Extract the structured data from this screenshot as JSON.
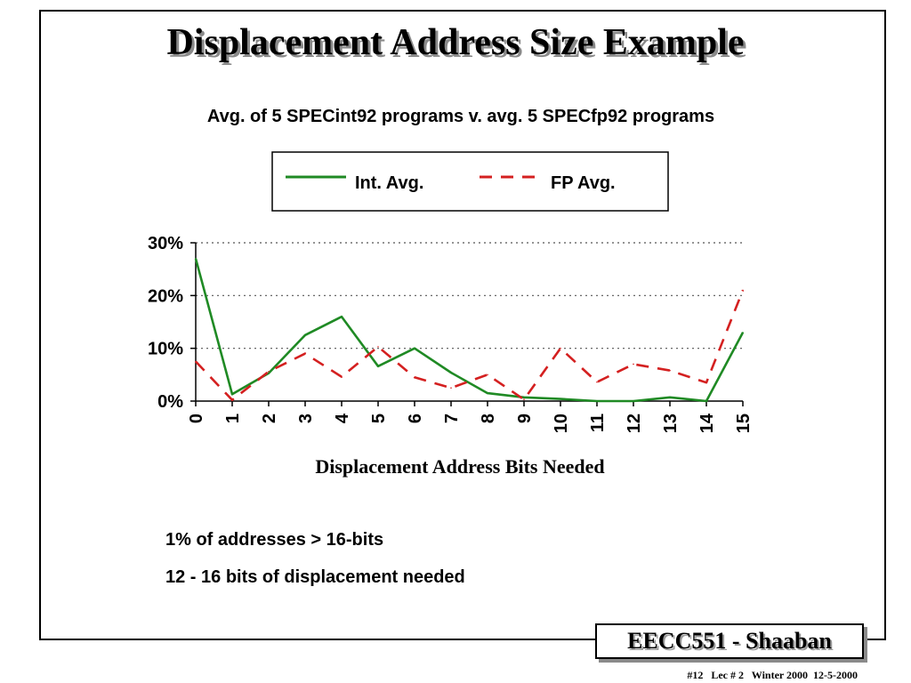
{
  "slide": {
    "title": "Displacement Address Size Example",
    "subtitle": "Avg. of 5 SPECint92 programs v. avg. 5 SPECfp92 programs",
    "notes": [
      "1% of addresses > 16-bits",
      "12 - 16 bits of displacement needed"
    ],
    "footer_badge": "EECC551 - Shaaban",
    "footer_meta": "#12   Lec # 2   Winter 2000  12-5-2000"
  },
  "colors": {
    "int_series": "#1f8a24",
    "fp_series": "#d42020",
    "gridline": "#555555"
  },
  "chart_data": {
    "type": "line",
    "title": "Avg. of 5 SPECint92 programs v. avg. 5 SPECfp92 programs",
    "xlabel": "Displacement Address Bits Needed",
    "ylabel": "",
    "x": [
      0,
      1,
      2,
      3,
      4,
      5,
      6,
      7,
      8,
      9,
      10,
      11,
      12,
      13,
      14,
      15
    ],
    "x_tick_labels": [
      "0",
      "1",
      "2",
      "3",
      "4",
      "5",
      "6",
      "7",
      "8",
      "9",
      "10",
      "11",
      "12",
      "13",
      "14",
      "15"
    ],
    "y_tick_labels": [
      "0%",
      "10%",
      "20%",
      "30%"
    ],
    "ylim": [
      0,
      30
    ],
    "grid": "horizontal dotted",
    "legend_position": "top-center, boxed",
    "series": [
      {
        "name": "Int. Avg.",
        "style": "solid",
        "values": [
          27,
          1.3,
          5.3,
          12.5,
          16,
          6.6,
          10,
          5.4,
          1.5,
          0.7,
          0.4,
          0,
          0,
          0.7,
          0,
          13
        ]
      },
      {
        "name": "FP Avg.",
        "style": "dashed",
        "values": [
          7.5,
          0.2,
          5.6,
          9,
          4.6,
          10.3,
          4.5,
          2.5,
          5,
          0.3,
          10,
          3.6,
          7,
          5.8,
          3.5,
          21
        ]
      }
    ]
  }
}
